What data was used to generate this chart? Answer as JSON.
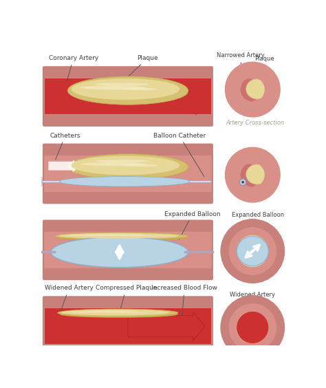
{
  "bg_color": "#ffffff",
  "artery_outer_color": "#c8807a",
  "artery_mid_color": "#d99088",
  "artery_inner_color": "#cc7070",
  "blood_color": "#cc3030",
  "blood_dark": "#aa2020",
  "plaque_color": "#e8d898",
  "plaque_mid": "#d4c070",
  "plaque_shadow": "#c8a850",
  "plaque_highlight": "#f5f0d0",
  "balloon_color": "#b8d4e4",
  "balloon_outline": "#8ab0cc",
  "balloon_light": "#d8eaf4",
  "catheter_color": "#d8d8e8",
  "catheter_dark": "#a8a8c0",
  "white": "#ffffff",
  "text_color": "#404040",
  "cross_text_color": "#a0a890",
  "labels": {
    "p1_left": "Coronary Artery",
    "p1_right": "Plaque",
    "p1_cross1": "Narrowed Artery",
    "p1_cross2": "Plaque",
    "p1_cross_sub": "Artery Cross-section",
    "p2_left": "Catheters",
    "p2_right": "Balloon Catheter",
    "p3_right": "Expanded Balloon",
    "p4_left": "Widened Artery",
    "p4_mid": "Compressed Plaque",
    "p4_right": "Increased Blood Flow",
    "p4_cross": "Widened Artery"
  }
}
